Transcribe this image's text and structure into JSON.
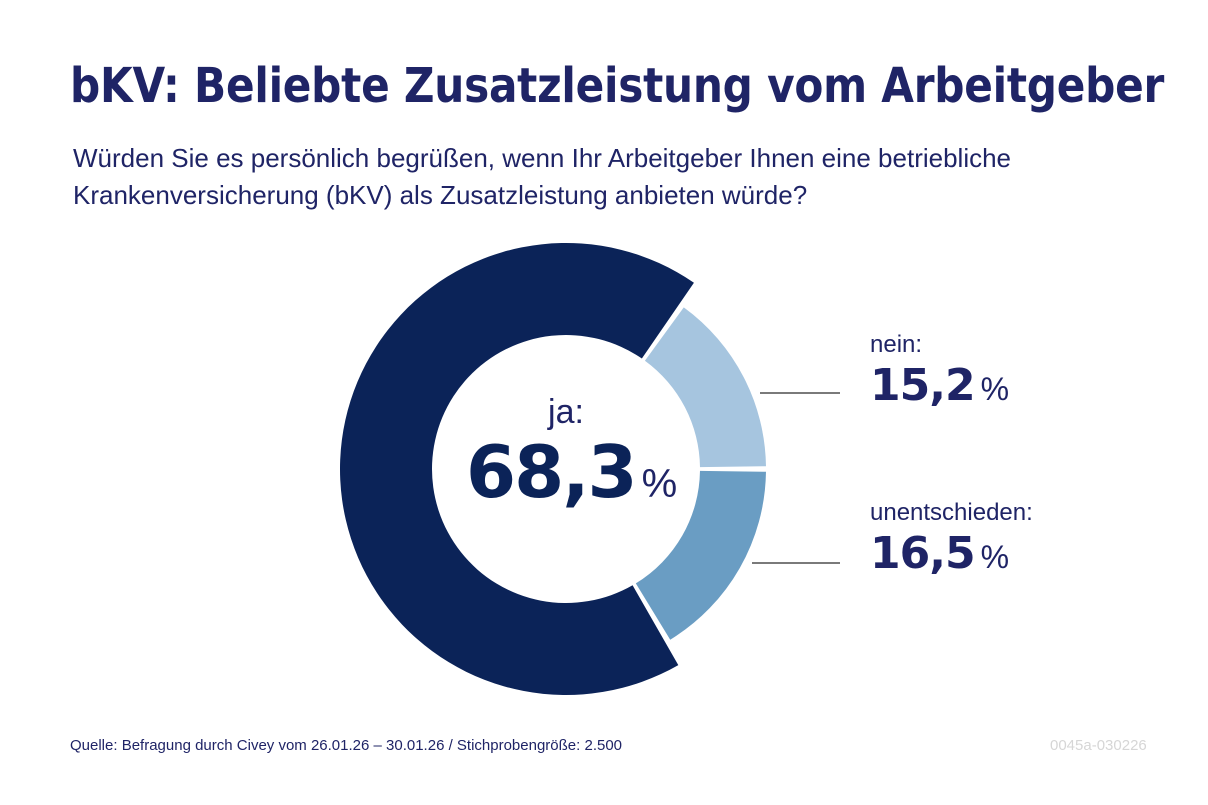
{
  "header": {
    "title": "bKV: Beliebte Zusatzleistung vom Arbeitgeber",
    "subtitle_line1": "Würden Sie es persönlich begrüßen, wenn Ihr Arbeitgeber Ihnen eine betriebliche",
    "subtitle_line2": "Krankenversicherung (bKV) als Zusatzleistung anbieten würde?"
  },
  "labels": {
    "ja": {
      "category": "ja:",
      "value": "68,3",
      "unit": "%"
    },
    "nein": {
      "category": "nein:",
      "value": "15,2",
      "unit": "%"
    },
    "unentschieden": {
      "category": "unentschieden:",
      "value": "16,5",
      "unit": "%"
    }
  },
  "footer": {
    "source": "Quelle: Befragung durch Civey vom 26.01.26 – 30.01.26 / Stichprobengröße: 2.500",
    "code": "0045a-030226"
  },
  "colors": {
    "title": "#1f2466",
    "ja": "#0b2358",
    "nein": "#a6c5df",
    "unentschieden": "#6a9dc3",
    "connector": "#7a7a7a"
  },
  "chart_data": {
    "type": "pie",
    "variant": "donut",
    "title": "bKV: Beliebte Zusatzleistung vom Arbeitgeber",
    "subtitle": "Würden Sie es persönlich begrüßen, wenn Ihr Arbeitgeber Ihnen eine betriebliche Krankenversicherung (bKV) als Zusatzleistung anbieten würde?",
    "unit": "%",
    "categories": [
      "nein",
      "unentschieden",
      "ja"
    ],
    "values": [
      15.2,
      16.5,
      68.3
    ],
    "colors": [
      "#a6c5df",
      "#6a9dc3",
      "#0b2358"
    ],
    "highlighted": "ja",
    "legend": "right",
    "source": "Quelle: Befragung durch Civey vom 26.01.26 – 30.01.26 / Stichprobengröße: 2.500"
  }
}
